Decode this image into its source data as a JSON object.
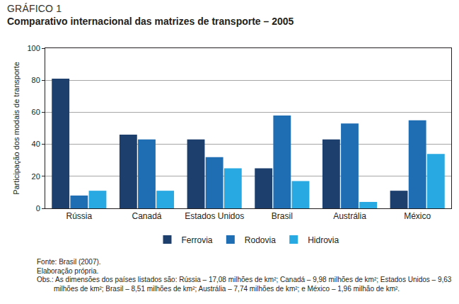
{
  "chart_data": {
    "type": "bar",
    "subtitle": "GRÁFICO 1",
    "title": "Comparativo internacional das matrizes de transporte – 2005",
    "y_label": "Participação dos modais de transporte",
    "categories": [
      "Rússia",
      "Canadá",
      "Estados Unidos",
      "Brasil",
      "Austrália",
      "México"
    ],
    "series": [
      {
        "name": "Ferrovia",
        "color": "#1c3f6e",
        "values": [
          81,
          46,
          43,
          25,
          43,
          11
        ]
      },
      {
        "name": "Rodovia",
        "color": "#1f6db3",
        "values": [
          8,
          43,
          32,
          58,
          53,
          55
        ]
      },
      {
        "name": "Hidrovia",
        "color": "#29a9e1",
        "values": [
          11,
          11,
          25,
          17,
          4,
          34
        ]
      }
    ],
    "ylim": [
      0,
      100
    ],
    "yticks": [
      0,
      20,
      40,
      60,
      80,
      100
    ],
    "grid": true,
    "legend": "bottom",
    "annotations": [
      "Fonte: Brasil (2007).",
      "Elaboração própria.",
      "Obs.: As dimensões dos países listados são: Rússia – 17,08 milhões de km²; Canadá – 9,98 milhões de km²; Estados Unidos – 9,63 milhões de km²; Brasil – 8,51 milhões de km²; Austrália – 7,74 milhões de km²; e México – 1,96 milhão de km²."
    ]
  }
}
